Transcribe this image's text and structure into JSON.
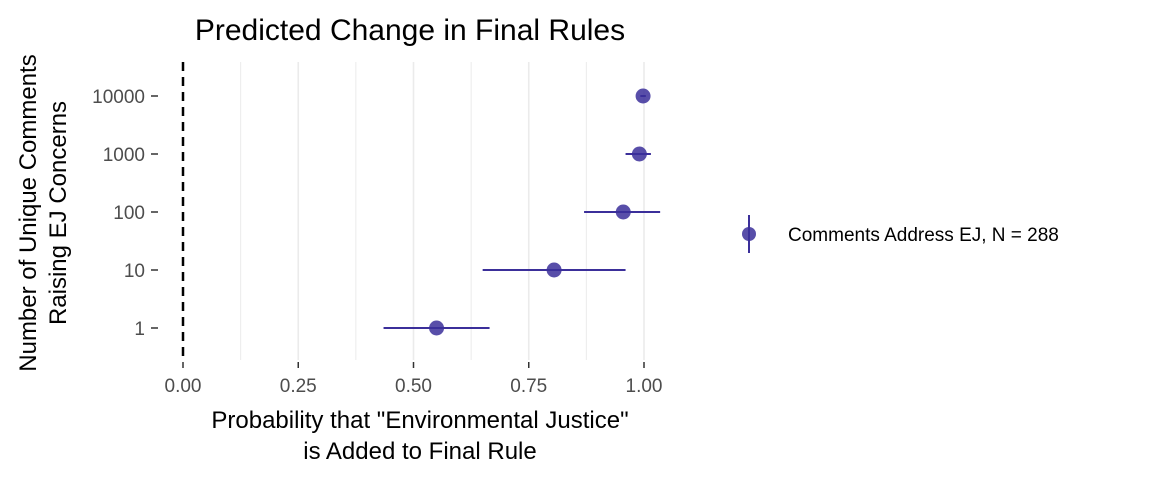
{
  "chart_data": {
    "type": "scatter",
    "title": "Predicted Change in Final Rules",
    "xlabel_lines": [
      "Probability that \"Environmental Justice\"",
      "is Added to Final Rule"
    ],
    "ylabel_lines": [
      "Number of Unique Comments",
      "Raising EJ Concerns"
    ],
    "xlim": [
      0,
      1.05
    ],
    "x_ticks": [
      0,
      0.25,
      0.5,
      0.75,
      1
    ],
    "x_tick_labels": [
      "0.00",
      "0.25",
      "0.50",
      "0.75",
      "1.00"
    ],
    "y_scale": "log10",
    "y_ticks": [
      1,
      10,
      100,
      1000,
      10000
    ],
    "y_tick_labels": [
      "1",
      "10",
      "100",
      "1000",
      "10000"
    ],
    "reference_line": {
      "x": 0,
      "style": "dashed"
    },
    "grid": "vertical major and minor",
    "legend_position": "right",
    "color": "#3b2f9a",
    "series": [
      {
        "name": "Comments Address EJ, N = 288",
        "points": [
          {
            "y": 1,
            "x": 0.55,
            "xmin": 0.435,
            "xmax": 0.665
          },
          {
            "y": 10,
            "x": 0.805,
            "xmin": 0.65,
            "xmax": 0.96
          },
          {
            "y": 100,
            "x": 0.955,
            "xmin": 0.87,
            "xmax": 1.035
          },
          {
            "y": 1000,
            "x": 0.99,
            "xmin": 0.96,
            "xmax": 1.015
          },
          {
            "y": 10000,
            "x": 0.998,
            "xmin": 0.992,
            "xmax": 1.004
          }
        ]
      }
    ]
  }
}
